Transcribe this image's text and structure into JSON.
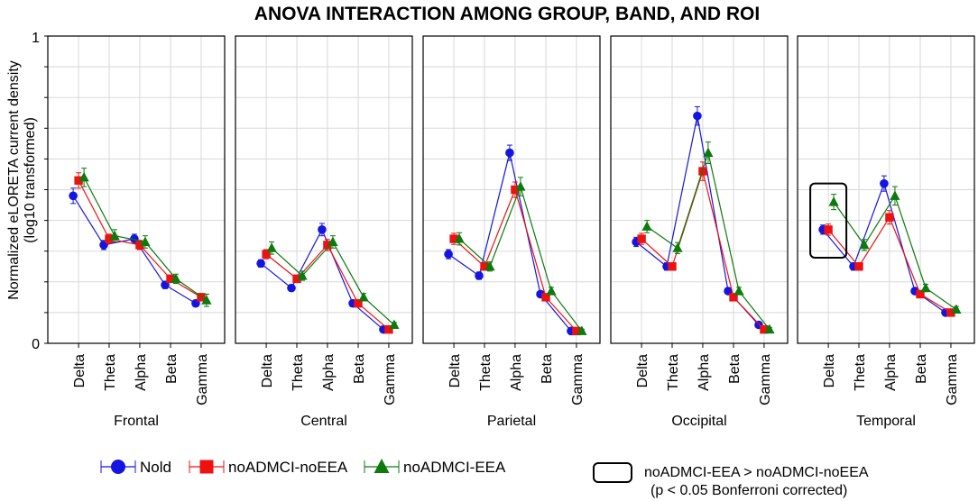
{
  "chart_data": {
    "type": "line",
    "title": "ANOVA INTERACTION AMONG GROUP, BAND, AND ROI",
    "ylabel_line1": "Normalized eLORETA current density",
    "ylabel_line2": "(log10 transformed)",
    "ylim": [
      0,
      1
    ],
    "y_tick_labels": [
      "0",
      "1"
    ],
    "grid": true,
    "categories": [
      "Delta",
      "Theta",
      "Alpha",
      "Beta",
      "Gamma"
    ],
    "panels": [
      {
        "roi": "Frontal",
        "series": {
          "Nold": {
            "values": [
              0.48,
              0.32,
              0.34,
              0.19,
              0.13
            ],
            "errors": [
              0.025,
              0.015,
              0.015,
              0.012,
              0.01
            ]
          },
          "noADMCI-noEEA": {
            "values": [
              0.53,
              0.34,
              0.32,
              0.21,
              0.15
            ],
            "errors": [
              0.025,
              0.015,
              0.015,
              0.012,
              0.012
            ]
          },
          "noADMCI-EEA": {
            "values": [
              0.54,
              0.35,
              0.33,
              0.21,
              0.14
            ],
            "errors": [
              0.03,
              0.02,
              0.02,
              0.015,
              0.02
            ]
          }
        }
      },
      {
        "roi": "Central",
        "series": {
          "Nold": {
            "values": [
              0.26,
              0.18,
              0.37,
              0.13,
              0.045
            ],
            "errors": [
              0.012,
              0.01,
              0.02,
              0.01,
              0.005
            ]
          },
          "noADMCI-noEEA": {
            "values": [
              0.29,
              0.21,
              0.32,
              0.13,
              0.045
            ],
            "errors": [
              0.015,
              0.012,
              0.018,
              0.01,
              0.005
            ]
          },
          "noADMCI-EEA": {
            "values": [
              0.31,
              0.22,
              0.33,
              0.15,
              0.06
            ],
            "errors": [
              0.02,
              0.015,
              0.02,
              0.012,
              0.008
            ]
          }
        }
      },
      {
        "roi": "Parietal",
        "series": {
          "Nold": {
            "values": [
              0.29,
              0.22,
              0.62,
              0.16,
              0.04
            ],
            "errors": [
              0.015,
              0.012,
              0.025,
              0.01,
              0.005
            ]
          },
          "noADMCI-noEEA": {
            "values": [
              0.34,
              0.25,
              0.5,
              0.15,
              0.04
            ],
            "errors": [
              0.018,
              0.012,
              0.025,
              0.01,
              0.005
            ]
          },
          "noADMCI-EEA": {
            "values": [
              0.34,
              0.25,
              0.51,
              0.17,
              0.04
            ],
            "errors": [
              0.02,
              0.015,
              0.03,
              0.012,
              0.006
            ]
          }
        }
      },
      {
        "roi": "Occipital",
        "series": {
          "Nold": {
            "values": [
              0.33,
              0.25,
              0.74,
              0.17,
              0.06
            ],
            "errors": [
              0.015,
              0.012,
              0.03,
              0.01,
              0.005
            ]
          },
          "noADMCI-noEEA": {
            "values": [
              0.34,
              0.25,
              0.56,
              0.15,
              0.045
            ],
            "errors": [
              0.018,
              0.012,
              0.03,
              0.01,
              0.005
            ]
          },
          "noADMCI-EEA": {
            "values": [
              0.38,
              0.31,
              0.62,
              0.17,
              0.045
            ],
            "errors": [
              0.02,
              0.018,
              0.035,
              0.012,
              0.006
            ]
          }
        }
      },
      {
        "roi": "Temporal",
        "series": {
          "Nold": {
            "values": [
              0.37,
              0.25,
              0.52,
              0.17,
              0.1
            ],
            "errors": [
              0.015,
              0.012,
              0.025,
              0.01,
              0.008
            ]
          },
          "noADMCI-noEEA": {
            "values": [
              0.37,
              0.25,
              0.41,
              0.16,
              0.1
            ],
            "errors": [
              0.018,
              0.012,
              0.022,
              0.01,
              0.008
            ]
          },
          "noADMCI-EEA": {
            "values": [
              0.46,
              0.32,
              0.48,
              0.18,
              0.11
            ],
            "errors": [
              0.025,
              0.018,
              0.03,
              0.012,
              0.01
            ]
          }
        },
        "highlight_category": "Delta"
      }
    ],
    "series_styles": [
      {
        "name": "Nold",
        "color": "#1515e0",
        "marker": "circle"
      },
      {
        "name": "noADMCI-noEEA",
        "color": "#ee1111",
        "marker": "square"
      },
      {
        "name": "noADMCI-EEA",
        "color": "#0c7a0c",
        "marker": "triangle"
      }
    ],
    "significance_legend_line1": "noADMCI-EEA > noADMCI-noEEA",
    "significance_legend_line2": "(p < 0.05 Bonferroni corrected)"
  }
}
